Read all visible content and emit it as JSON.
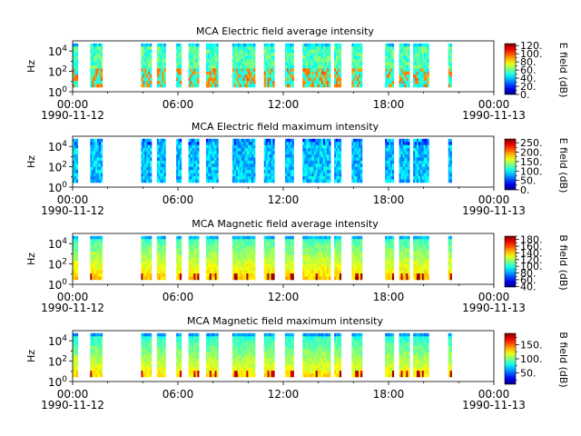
{
  "chart_data": [
    {
      "type": "heatmap",
      "title": "MCA  Electric field average intensity",
      "ylabel": "Hz",
      "y_scale": "log",
      "y_ticks": [
        "10^0",
        "10^2",
        "10^4"
      ],
      "y_tick_bases": [
        "10",
        "10",
        "10"
      ],
      "y_tick_exps": [
        "0",
        "2",
        "4"
      ],
      "x_ticks": [
        "00:00",
        "06:00",
        "12:00",
        "18:00",
        "00:00"
      ],
      "x_date_start": "1990-11-12",
      "x_date_end": "1990-11-13",
      "colorbar_label": "E field (dB)",
      "colorbar_ticks": [
        "0.",
        "20.",
        "40.",
        "60.",
        "80.",
        "100.",
        "120."
      ],
      "colorbar_range": [
        0,
        125
      ],
      "data_segments_hours": [
        [
          0.0,
          0.3
        ],
        [
          1.0,
          1.7
        ],
        [
          3.9,
          4.5
        ],
        [
          4.8,
          5.3
        ],
        [
          5.9,
          6.2
        ],
        [
          6.6,
          7.2
        ],
        [
          7.6,
          8.3
        ],
        [
          9.1,
          10.4
        ],
        [
          10.9,
          11.5
        ],
        [
          12.1,
          12.6
        ],
        [
          13.1,
          14.7
        ],
        [
          14.9,
          15.3
        ],
        [
          15.9,
          16.5
        ],
        [
          17.8,
          18.3
        ],
        [
          18.6,
          19.2
        ],
        [
          19.4,
          20.3
        ],
        [
          21.4,
          21.6
        ]
      ],
      "base_level": 0.45
    },
    {
      "type": "heatmap",
      "title": "MCA  Electric field maximum intensity",
      "ylabel": "Hz",
      "y_scale": "log",
      "y_ticks": [
        "10^0",
        "10^2",
        "10^4"
      ],
      "y_tick_bases": [
        "10",
        "10",
        "10"
      ],
      "y_tick_exps": [
        "0",
        "2",
        "4"
      ],
      "x_ticks": [
        "00:00",
        "06:00",
        "12:00",
        "18:00",
        "00:00"
      ],
      "x_date_start": "1990-11-12",
      "x_date_end": "1990-11-13",
      "colorbar_label": "E field (dB)",
      "colorbar_ticks": [
        "0.",
        "50.",
        "100.",
        "150.",
        "200.",
        "250."
      ],
      "colorbar_range": [
        0,
        270
      ],
      "data_segments_hours": [
        [
          0.0,
          0.3
        ],
        [
          1.0,
          1.7
        ],
        [
          3.9,
          4.5
        ],
        [
          4.8,
          5.3
        ],
        [
          5.9,
          6.2
        ],
        [
          6.6,
          7.2
        ],
        [
          7.6,
          8.3
        ],
        [
          9.1,
          10.4
        ],
        [
          10.9,
          11.5
        ],
        [
          12.1,
          12.6
        ],
        [
          13.1,
          14.7
        ],
        [
          14.9,
          15.3
        ],
        [
          15.9,
          16.5
        ],
        [
          17.8,
          18.3
        ],
        [
          18.6,
          19.2
        ],
        [
          19.4,
          20.3
        ],
        [
          21.4,
          21.6
        ]
      ],
      "base_level": 0.32
    },
    {
      "type": "heatmap",
      "title": "MCA  Magnetic field average intensity",
      "ylabel": "Hz",
      "y_scale": "log",
      "y_ticks": [
        "10^0",
        "10^2",
        "10^4"
      ],
      "y_tick_bases": [
        "10",
        "10",
        "10"
      ],
      "y_tick_exps": [
        "0",
        "2",
        "4"
      ],
      "x_ticks": [
        "00:00",
        "06:00",
        "12:00",
        "18:00",
        "00:00"
      ],
      "x_date_start": "1990-11-12",
      "x_date_end": "1990-11-13",
      "colorbar_label": "B field (dB)",
      "colorbar_ticks": [
        "40.",
        "60.",
        "80.",
        "100.",
        "120.",
        "140.",
        "160.",
        "180."
      ],
      "colorbar_range": [
        38,
        190
      ],
      "data_segments_hours": [
        [
          0.0,
          0.3
        ],
        [
          1.0,
          1.7
        ],
        [
          3.9,
          4.5
        ],
        [
          4.8,
          5.3
        ],
        [
          5.9,
          6.2
        ],
        [
          6.6,
          7.2
        ],
        [
          7.6,
          8.3
        ],
        [
          9.1,
          10.4
        ],
        [
          10.9,
          11.5
        ],
        [
          12.1,
          12.6
        ],
        [
          13.1,
          14.7
        ],
        [
          14.9,
          15.3
        ],
        [
          15.9,
          16.5
        ],
        [
          17.8,
          18.3
        ],
        [
          18.6,
          19.2
        ],
        [
          19.4,
          20.3
        ],
        [
          21.4,
          21.6
        ]
      ],
      "base_level": 0.55
    },
    {
      "type": "heatmap",
      "title": "MCA  Magnetic field maximum intensity",
      "ylabel": "Hz",
      "y_scale": "log",
      "y_ticks": [
        "10^0",
        "10^2",
        "10^4"
      ],
      "y_tick_bases": [
        "10",
        "10",
        "10"
      ],
      "y_tick_exps": [
        "0",
        "2",
        "4"
      ],
      "x_ticks": [
        "00:00",
        "06:00",
        "12:00",
        "18:00",
        "00:00"
      ],
      "x_date_start": "1990-11-12",
      "x_date_end": "1990-11-13",
      "colorbar_label": "B field (dB)",
      "colorbar_ticks": [
        "50.",
        "100.",
        "150."
      ],
      "colorbar_range": [
        10,
        190
      ],
      "data_segments_hours": [
        [
          0.0,
          0.3
        ],
        [
          1.0,
          1.7
        ],
        [
          3.9,
          4.5
        ],
        [
          4.8,
          5.3
        ],
        [
          5.9,
          6.2
        ],
        [
          6.6,
          7.2
        ],
        [
          7.6,
          8.3
        ],
        [
          9.1,
          10.4
        ],
        [
          10.9,
          11.5
        ],
        [
          12.1,
          12.6
        ],
        [
          13.1,
          14.7
        ],
        [
          14.9,
          15.3
        ],
        [
          15.9,
          16.5
        ],
        [
          17.8,
          18.3
        ],
        [
          18.6,
          19.2
        ],
        [
          19.4,
          20.3
        ],
        [
          21.4,
          21.6
        ]
      ],
      "base_level": 0.52
    }
  ]
}
